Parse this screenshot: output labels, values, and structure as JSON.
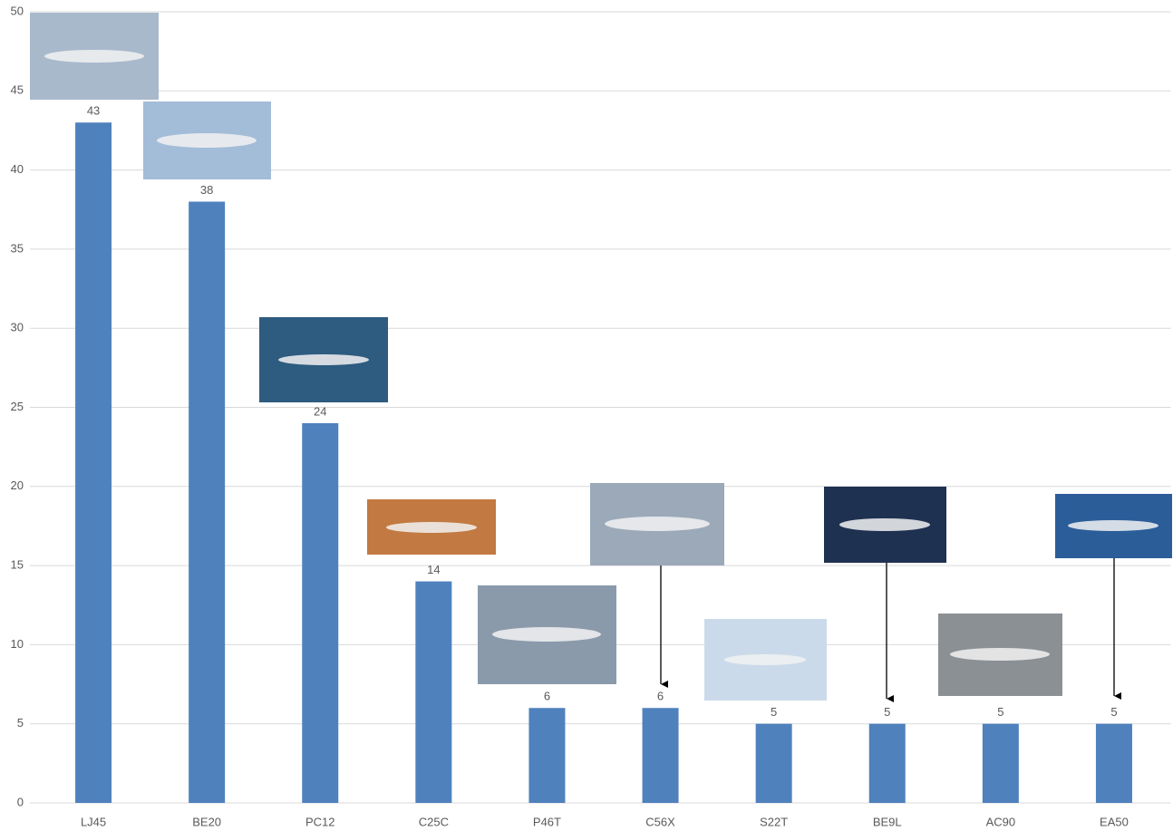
{
  "chart_data": {
    "type": "bar",
    "categories": [
      "LJ45",
      "BE20",
      "PC12",
      "C25C",
      "P46T",
      "C56X",
      "S22T",
      "BE9L",
      "AC90",
      "EA50"
    ],
    "values": [
      43,
      38,
      24,
      14,
      6,
      6,
      5,
      5,
      5,
      5
    ],
    "color": "#4f81bd",
    "ylim": [
      0,
      50
    ],
    "yticks": [
      0,
      5,
      10,
      15,
      20,
      25,
      30,
      35,
      40,
      45,
      50
    ],
    "grid": true
  }
}
